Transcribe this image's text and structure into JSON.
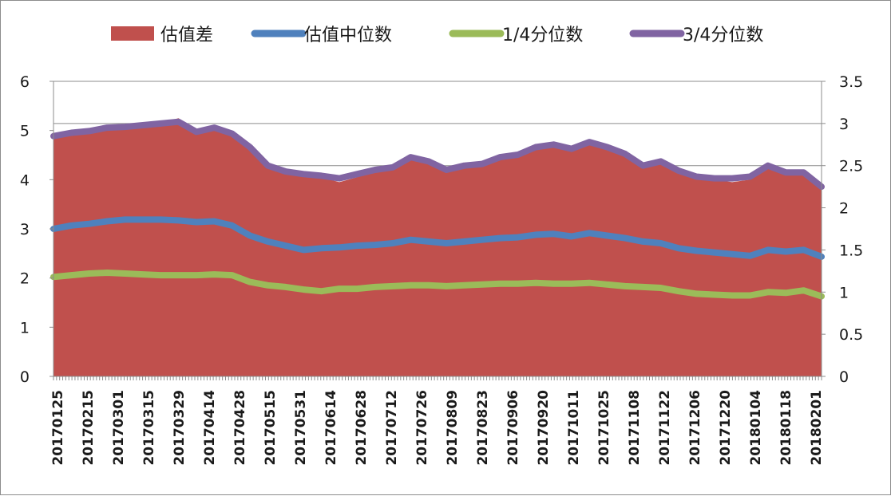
{
  "chart_data": {
    "type": "area+line",
    "title": "",
    "legend": [
      {
        "name": "估值差",
        "color": "#c0504d",
        "kind": "area",
        "axis": "left"
      },
      {
        "name": "估值中位数",
        "color": "#4f81bd",
        "kind": "line",
        "axis": "right"
      },
      {
        "name": "1/4分位数",
        "color": "#9bbb59",
        "kind": "line",
        "axis": "right"
      },
      {
        "name": "3/4分位数",
        "color": "#8064a2",
        "kind": "line",
        "axis": "right"
      }
    ],
    "legend_position": "top",
    "left_axis": {
      "ylim": [
        0,
        6
      ],
      "ticks": [
        "0",
        "1",
        "2",
        "3",
        "4",
        "5",
        "6"
      ]
    },
    "right_axis": {
      "ylim": [
        0,
        3.5
      ],
      "ticks": [
        "0",
        "0.5",
        "1",
        "1.5",
        "2",
        "2.5",
        "3",
        "3.5"
      ]
    },
    "grid": "horizontal at right-axis ticks",
    "x_tick_labels": [
      "20170125",
      "20170215",
      "20170301",
      "20170315",
      "20170329",
      "20170414",
      "20170428",
      "20170515",
      "20170531",
      "20170614",
      "20170628",
      "20170712",
      "20170726",
      "20170809",
      "20170823",
      "20170906",
      "20170920",
      "20171011",
      "20171025",
      "20171108",
      "20171122",
      "20171206",
      "20171220",
      "20180104",
      "20180118",
      "20180201"
    ],
    "series": [
      {
        "name": "估值差",
        "axis": "left",
        "values": [
          4.85,
          4.95,
          4.95,
          5.05,
          5.05,
          5.1,
          5.15,
          5.25,
          5.0,
          5.05,
          4.95,
          4.7,
          4.3,
          4.15,
          4.1,
          4.05,
          3.95,
          4.05,
          4.2,
          4.25,
          4.45,
          4.35,
          4.2,
          4.3,
          4.3,
          4.45,
          4.5,
          4.65,
          4.7,
          4.6,
          4.75,
          4.65,
          4.5,
          4.3,
          4.35,
          4.15,
          4.05,
          4.0,
          3.95,
          4.0,
          4.3,
          4.15,
          4.1,
          3.85
        ]
      },
      {
        "name": "估值中位数",
        "axis": "right",
        "values": [
          1.75,
          1.79,
          1.81,
          1.84,
          1.86,
          1.86,
          1.86,
          1.85,
          1.83,
          1.84,
          1.79,
          1.67,
          1.6,
          1.55,
          1.5,
          1.52,
          1.53,
          1.55,
          1.56,
          1.58,
          1.62,
          1.6,
          1.58,
          1.6,
          1.62,
          1.64,
          1.65,
          1.68,
          1.69,
          1.66,
          1.7,
          1.67,
          1.64,
          1.6,
          1.58,
          1.52,
          1.49,
          1.47,
          1.45,
          1.43,
          1.5,
          1.48,
          1.5,
          1.42
        ]
      },
      {
        "name": "1/4分位数",
        "axis": "right",
        "values": [
          1.18,
          1.2,
          1.22,
          1.23,
          1.22,
          1.21,
          1.2,
          1.2,
          1.2,
          1.21,
          1.2,
          1.12,
          1.08,
          1.06,
          1.03,
          1.01,
          1.04,
          1.04,
          1.06,
          1.07,
          1.08,
          1.08,
          1.07,
          1.08,
          1.09,
          1.1,
          1.1,
          1.11,
          1.1,
          1.1,
          1.11,
          1.09,
          1.07,
          1.06,
          1.05,
          1.01,
          0.98,
          0.97,
          0.96,
          0.96,
          1.0,
          0.99,
          1.02,
          0.95
        ]
      },
      {
        "name": "3/4分位数",
        "axis": "right",
        "values": [
          2.85,
          2.89,
          2.91,
          2.95,
          2.96,
          2.98,
          3.0,
          3.02,
          2.9,
          2.95,
          2.88,
          2.72,
          2.5,
          2.43,
          2.4,
          2.38,
          2.35,
          2.4,
          2.45,
          2.48,
          2.6,
          2.55,
          2.45,
          2.5,
          2.52,
          2.6,
          2.63,
          2.72,
          2.75,
          2.7,
          2.78,
          2.72,
          2.64,
          2.5,
          2.55,
          2.44,
          2.37,
          2.35,
          2.35,
          2.37,
          2.5,
          2.42,
          2.42,
          2.25
        ]
      }
    ]
  }
}
